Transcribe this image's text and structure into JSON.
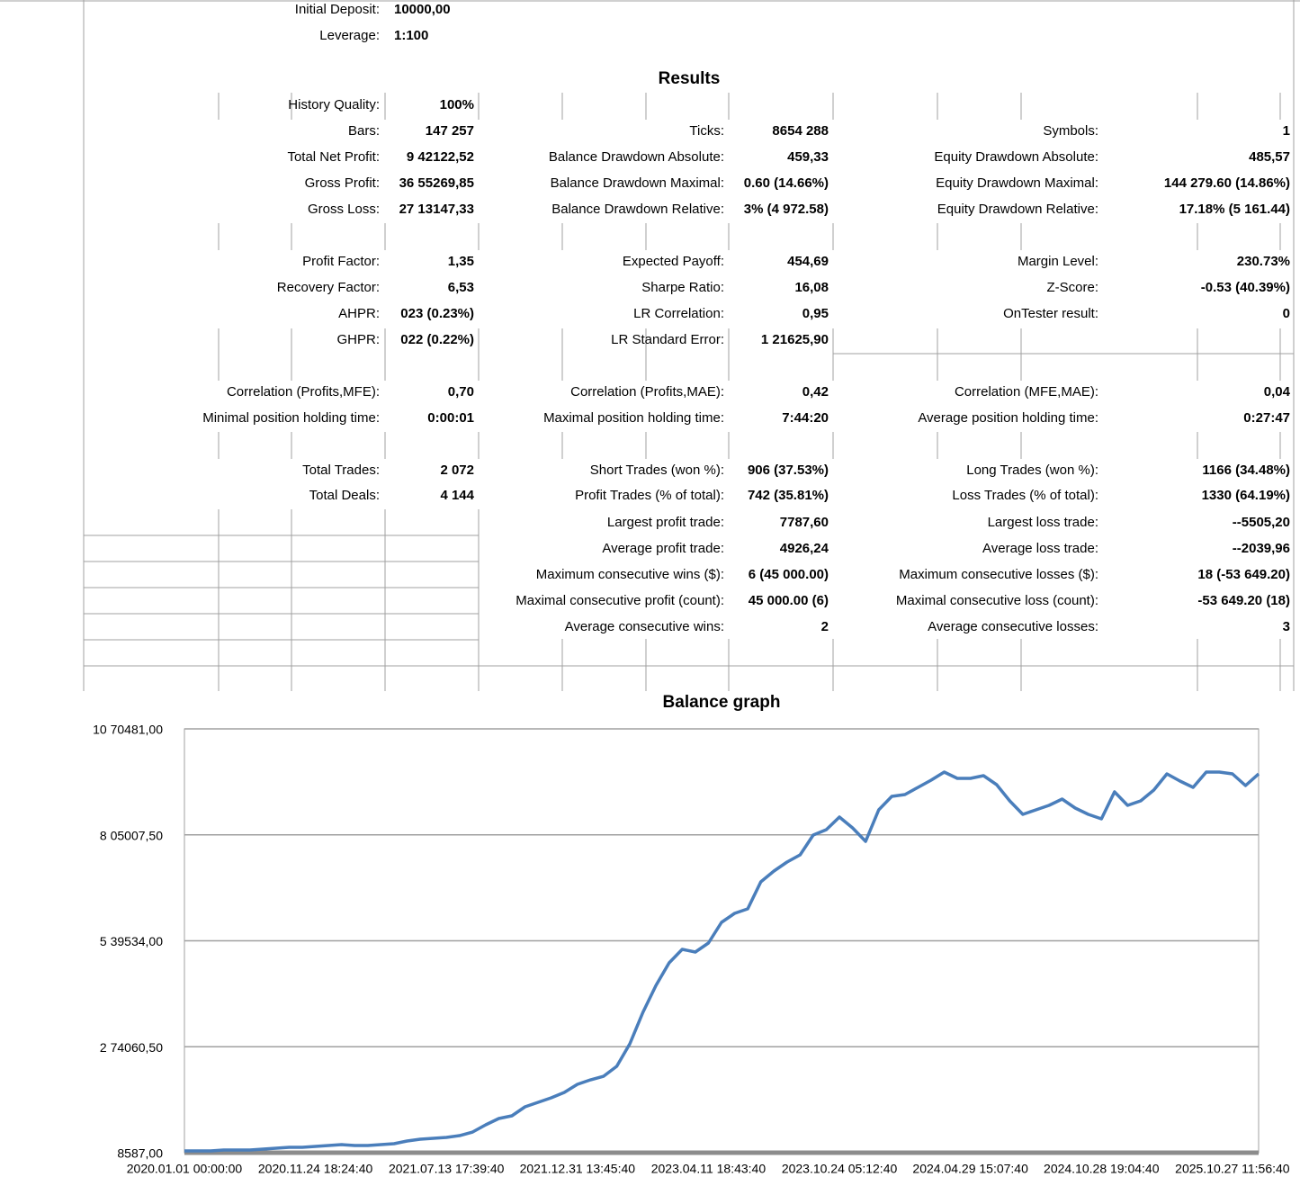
{
  "report": {
    "settings": [
      {
        "label": "Initial Deposit:",
        "value": "10000,00"
      },
      {
        "label": "Leverage:",
        "value": "1:100"
      }
    ],
    "results_title": "Results",
    "rows": [
      [
        {
          "label": "History Quality:",
          "value": "100%"
        },
        null,
        null
      ],
      [
        {
          "label": "Bars:",
          "value": "147 257"
        },
        {
          "label": "Ticks:",
          "value": "8654 288"
        },
        {
          "label": "Symbols:",
          "value": "1"
        }
      ],
      [
        {
          "label": "Total Net Profit:",
          "value": "9 42122,52"
        },
        {
          "label": "Balance Drawdown Absolute:",
          "value": "459,33"
        },
        {
          "label": "Equity Drawdown Absolute:",
          "value": "485,57"
        }
      ],
      [
        {
          "label": "Gross Profit:",
          "value": "36 55269,85"
        },
        {
          "label": "Balance Drawdown Maximal:",
          "value": "0.60 (14.66%)"
        },
        {
          "label": "Equity Drawdown Maximal:",
          "value": "144 279.60 (14.86%)"
        }
      ],
      [
        {
          "label": "Gross Loss:",
          "value": "27 13147,33"
        },
        {
          "label": "Balance Drawdown Relative:",
          "value": "3% (4 972.58)"
        },
        {
          "label": "Equity Drawdown Relative:",
          "value": "17.18% (5 161.44)"
        }
      ],
      [
        {
          "label": "Profit Factor:",
          "value": "1,35"
        },
        {
          "label": "Expected Payoff:",
          "value": "454,69"
        },
        {
          "label": "Margin Level:",
          "value": "230.73%"
        }
      ],
      [
        {
          "label": "Recovery Factor:",
          "value": "6,53"
        },
        {
          "label": "Sharpe Ratio:",
          "value": "16,08"
        },
        {
          "label": "Z-Score:",
          "value": "-0.53 (40.39%)"
        }
      ],
      [
        {
          "label": "AHPR:",
          "value": "023 (0.23%)"
        },
        {
          "label": "LR Correlation:",
          "value": "0,95"
        },
        {
          "label": "OnTester result:",
          "value": "0"
        }
      ],
      [
        {
          "label": "GHPR:",
          "value": "022 (0.22%)"
        },
        {
          "label": "LR Standard Error:",
          "value": "1 21625,90"
        },
        null
      ],
      [
        {
          "label": "Correlation (Profits,MFE):",
          "value": "0,70"
        },
        {
          "label": "Correlation (Profits,MAE):",
          "value": "0,42"
        },
        {
          "label": "Correlation (MFE,MAE):",
          "value": "0,04"
        }
      ],
      [
        {
          "label": "Minimal position holding time:",
          "value": "0:00:01"
        },
        {
          "label": "Maximal position holding time:",
          "value": "7:44:20"
        },
        {
          "label": "Average position holding time:",
          "value": "0:27:47"
        }
      ],
      [
        {
          "label": "Total Trades:",
          "value": "2 072"
        },
        {
          "label": "Short Trades (won %):",
          "value": "906 (37.53%)"
        },
        {
          "label": "Long Trades (won %):",
          "value": "1166 (34.48%)"
        }
      ],
      [
        {
          "label": "Total Deals:",
          "value": "4 144"
        },
        {
          "label": "Profit Trades (% of total):",
          "value": "742 (35.81%)"
        },
        {
          "label": "Loss Trades (% of total):",
          "value": "1330 (64.19%)"
        }
      ],
      [
        null,
        {
          "label": "Largest profit trade:",
          "value": "7787,60"
        },
        {
          "label": "Largest loss trade:",
          "value": "--5505,20"
        }
      ],
      [
        null,
        {
          "label": "Average profit trade:",
          "value": "4926,24"
        },
        {
          "label": "Average loss trade:",
          "value": "--2039,96"
        }
      ],
      [
        null,
        {
          "label": "Maximum consecutive wins ($):",
          "value": "6 (45 000.00)"
        },
        {
          "label": "Maximum consecutive losses ($):",
          "value": "18 (-53 649.20)"
        }
      ],
      [
        null,
        {
          "label": "Maximal consecutive profit (count):",
          "value": "45 000.00 (6)"
        },
        {
          "label": "Maximal consecutive loss (count):",
          "value": "-53 649.20 (18)"
        }
      ],
      [
        null,
        {
          "label": "Average consecutive wins:",
          "value": "2"
        },
        {
          "label": "Average consecutive losses:",
          "value": "3"
        }
      ]
    ]
  },
  "chart_data": {
    "type": "line",
    "title": "Balance graph",
    "color": "#4a7ebb",
    "grid": true,
    "ylim": [
      8587,
      1070481
    ],
    "yticks": [
      {
        "value": 8587,
        "label": "8587,00"
      },
      {
        "value": 274060.5,
        "label": "2 74060,50"
      },
      {
        "value": 539534,
        "label": "5 39534,00"
      },
      {
        "value": 805007.5,
        "label": "8 05007,50"
      },
      {
        "value": 1070481,
        "label": "10 70481,00"
      }
    ],
    "x": [
      "2020.01.01 00:00:00",
      null,
      null,
      null,
      null,
      null,
      null,
      null,
      null,
      null,
      "2020.11.24 18:24:40",
      null,
      null,
      null,
      null,
      null,
      null,
      null,
      null,
      null,
      "2021.07.13 17:39:40",
      null,
      null,
      null,
      null,
      null,
      null,
      null,
      null,
      null,
      "2021.12.31 13:45:40",
      null,
      null,
      null,
      null,
      null,
      null,
      null,
      null,
      null,
      "2023.04.11 18:43:40",
      null,
      null,
      null,
      null,
      null,
      null,
      null,
      null,
      null,
      "2023.10.24 05:12:40",
      null,
      null,
      null,
      null,
      null,
      null,
      null,
      null,
      null,
      "2024.04.29 15:07:40",
      null,
      null,
      null,
      null,
      null,
      null,
      null,
      null,
      null,
      "2024.10.28 19:04:40",
      null,
      null,
      null,
      null,
      null,
      null,
      null,
      null,
      null,
      "2025.10.27 11:56:40",
      null,
      null
    ],
    "values": [
      13096,
      13096,
      13096,
      15351,
      15351,
      15351,
      17605,
      19860,
      22114,
      22114,
      24369,
      26623,
      28878,
      26623,
      26623,
      28878,
      31133,
      37896,
      42405,
      44660,
      46914,
      51423,
      60441,
      78478,
      94260,
      101023,
      123568,
      134842,
      146114,
      159642,
      179932,
      191206,
      200224,
      225024,
      281387,
      360297,
      427932,
      484296,
      518114,
      511350,
      533896,
      585751,
      608296,
      619569,
      687205,
      714260,
      736805,
      754842,
      804442,
      817969,
      849533,
      822478,
      788660,
      867569,
      901387,
      905896,
      923933,
      941969,
      962260,
      946478,
      946478,
      953242,
      930696,
      890115,
      856296,
      867569,
      878842,
      894624,
      872078,
      856296,
      845024,
      912660,
      878842,
      890115,
      917169,
      957751,
      939714,
      923933,
      962260,
      962260,
      957751,
      928442,
      957751
    ]
  }
}
